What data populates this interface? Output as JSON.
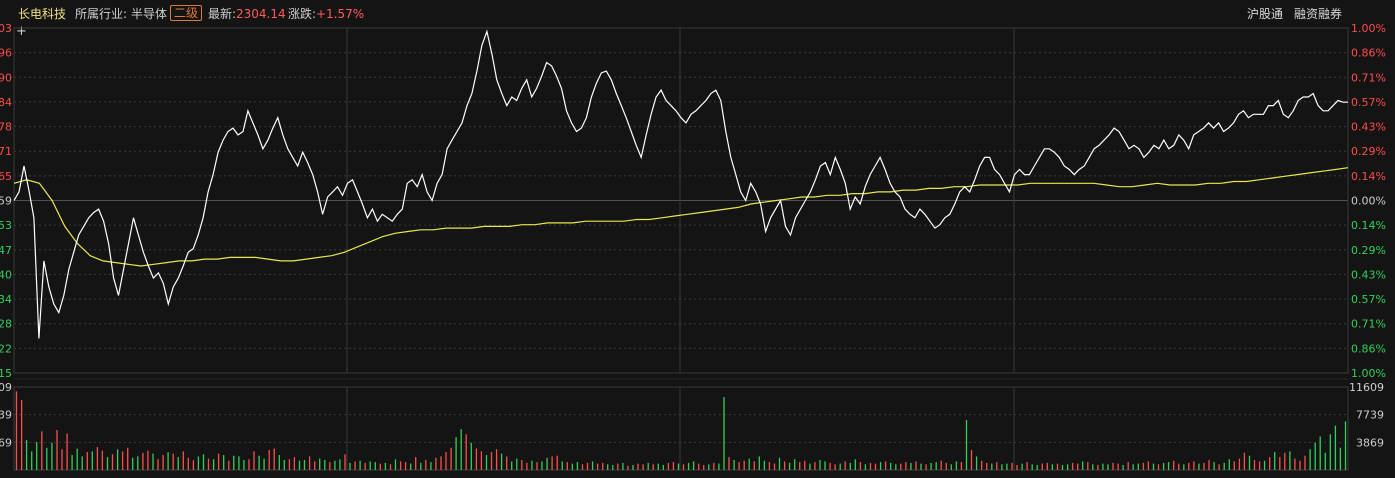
{
  "header": {
    "stock_name": "长电科技",
    "industry_label": "所属行业:",
    "industry_value": "半导体",
    "level_badge": "二级",
    "latest_label": "最新:",
    "latest_value": "2304.14",
    "change_label": "涨跌:",
    "change_value": "+1.57%",
    "links": [
      "沪股通",
      "融资融券"
    ]
  },
  "colors": {
    "background": "#141414",
    "price_line": "#ffffff",
    "avg_line": "#e8e84a",
    "up": "#ff4d4d",
    "down": "#2fd15a",
    "grid": "#3a3a3a"
  },
  "chart_data": [
    {
      "type": "line",
      "series": [
        {
          "values": [
            0.0,
            0.05,
            0.2,
            0.06,
            -0.1,
            -0.8,
            -0.35,
            -0.5,
            -0.6,
            -0.65,
            -0.55,
            -0.4,
            -0.3,
            -0.2,
            -0.15,
            -0.1,
            -0.07,
            -0.05,
            -0.12,
            -0.25,
            -0.45,
            -0.55,
            -0.4,
            -0.25,
            -0.1,
            -0.2,
            -0.3,
            -0.38,
            -0.45,
            -0.42,
            -0.48,
            -0.6,
            -0.5,
            -0.45,
            -0.38,
            -0.3,
            -0.28,
            -0.2,
            -0.1,
            0.05,
            0.15,
            0.28,
            0.35,
            0.4,
            0.42,
            0.38,
            0.4,
            0.52,
            0.45,
            0.38,
            0.3,
            0.35,
            0.42,
            0.48,
            0.38,
            0.3,
            0.25,
            0.2,
            0.28,
            0.22,
            0.15,
            0.05,
            -0.08,
            0.02,
            0.05,
            0.08,
            0.03,
            0.1,
            0.12,
            0.05,
            -0.02,
            -0.1,
            -0.05,
            -0.12,
            -0.08,
            -0.1,
            -0.12,
            -0.08,
            -0.05,
            0.1,
            0.12,
            0.08,
            0.15,
            0.05,
            0.0,
            0.1,
            0.15,
            0.3,
            0.35,
            0.4,
            0.45,
            0.55,
            0.62,
            0.75,
            0.9,
            0.98,
            0.85,
            0.7,
            0.62,
            0.55,
            0.6,
            0.58,
            0.65,
            0.7,
            0.6,
            0.65,
            0.72,
            0.8,
            0.78,
            0.72,
            0.65,
            0.52,
            0.45,
            0.4,
            0.42,
            0.48,
            0.6,
            0.68,
            0.74,
            0.75,
            0.7,
            0.62,
            0.55,
            0.48,
            0.4,
            0.32,
            0.25,
            0.38,
            0.5,
            0.6,
            0.64,
            0.58,
            0.55,
            0.52,
            0.48,
            0.45,
            0.5,
            0.52,
            0.55,
            0.58,
            0.62,
            0.64,
            0.58,
            0.4,
            0.25,
            0.15,
            0.05,
            0.0,
            0.1,
            0.05,
            -0.02,
            -0.18,
            -0.1,
            -0.05,
            0.0,
            -0.15,
            -0.2,
            -0.1,
            -0.05,
            0.0,
            0.05,
            0.12,
            0.2,
            0.22,
            0.15,
            0.25,
            0.18,
            0.1,
            -0.05,
            0.02,
            -0.02,
            0.08,
            0.15,
            0.2,
            0.25,
            0.18,
            0.1,
            0.05,
            0.02,
            -0.05,
            -0.08,
            -0.1,
            -0.05,
            -0.08,
            -0.12,
            -0.16,
            -0.14,
            -0.1,
            -0.08,
            -0.02,
            0.05,
            0.08,
            0.05,
            0.12,
            0.2,
            0.25,
            0.25,
            0.18,
            0.15,
            0.1,
            0.05,
            0.15,
            0.18,
            0.15,
            0.15,
            0.2,
            0.25,
            0.3,
            0.3,
            0.28,
            0.25,
            0.2,
            0.18,
            0.15,
            0.18,
            0.2,
            0.25,
            0.3,
            0.32,
            0.35,
            0.38,
            0.42,
            0.4,
            0.35,
            0.3,
            0.32,
            0.3,
            0.25,
            0.28,
            0.32,
            0.3,
            0.35,
            0.3,
            0.32,
            0.38,
            0.35,
            0.3,
            0.38,
            0.4,
            0.42,
            0.45,
            0.42,
            0.45,
            0.4,
            0.42,
            0.45,
            0.5,
            0.52,
            0.48,
            0.5,
            0.5,
            0.5,
            0.55,
            0.55,
            0.58,
            0.5,
            0.48,
            0.52,
            0.58,
            0.6,
            0.6,
            0.62,
            0.55,
            0.52,
            0.52,
            0.55,
            0.58,
            0.57,
            0.57
          ]
        },
        {
          "values": [
            0.1,
            0.12,
            0.1,
            0.0,
            -0.15,
            -0.25,
            -0.32,
            -0.35,
            -0.36,
            -0.37,
            -0.38,
            -0.37,
            -0.36,
            -0.35,
            -0.35,
            -0.34,
            -0.34,
            -0.33,
            -0.33,
            -0.33,
            -0.34,
            -0.35,
            -0.35,
            -0.34,
            -0.33,
            -0.32,
            -0.3,
            -0.27,
            -0.24,
            -0.21,
            -0.19,
            -0.18,
            -0.17,
            -0.17,
            -0.16,
            -0.16,
            -0.16,
            -0.15,
            -0.15,
            -0.15,
            -0.14,
            -0.14,
            -0.13,
            -0.13,
            -0.13,
            -0.12,
            -0.12,
            -0.12,
            -0.12,
            -0.11,
            -0.11,
            -0.1,
            -0.09,
            -0.08,
            -0.07,
            -0.06,
            -0.05,
            -0.04,
            -0.02,
            -0.01,
            0.0,
            0.01,
            0.02,
            0.02,
            0.03,
            0.03,
            0.04,
            0.04,
            0.05,
            0.05,
            0.06,
            0.06,
            0.07,
            0.07,
            0.08,
            0.08,
            0.09,
            0.09,
            0.09,
            0.09,
            0.1,
            0.1,
            0.1,
            0.1,
            0.1,
            0.1,
            0.09,
            0.08,
            0.08,
            0.09,
            0.1,
            0.09,
            0.09,
            0.09,
            0.1,
            0.1,
            0.11,
            0.11,
            0.12,
            0.13,
            0.14,
            0.15,
            0.16,
            0.17,
            0.18,
            0.19
          ]
        }
      ],
      "ylabel_left": [
        "03",
        "96",
        "90",
        "84",
        "78",
        "71",
        "65",
        "59",
        "53",
        "47",
        "40",
        "34",
        "28",
        "22",
        "15"
      ],
      "ylabel_right": [
        "1.00%",
        "0.86%",
        "0.71%",
        "0.57%",
        "0.43%",
        "0.29%",
        "0.14%",
        "0.00%",
        "0.14%",
        "0.29%",
        "0.43%",
        "0.57%",
        "0.71%",
        "0.86%",
        "1.00%"
      ],
      "ylim": [
        -1.0,
        1.0
      ]
    },
    {
      "type": "bar",
      "ylabel_left": [
        "09",
        "39",
        "69"
      ],
      "ylabel_right": [
        "11609",
        "7739",
        "3869"
      ],
      "ylim": [
        0,
        11609
      ],
      "values": [
        11000,
        9800,
        4200,
        2600,
        3900,
        5400,
        3100,
        3800,
        5600,
        2900,
        5100,
        2100,
        3000,
        1900,
        2500,
        2600,
        3200,
        2700,
        1800,
        2200,
        2900,
        2600,
        3100,
        1700,
        1900,
        2400,
        2700,
        2300,
        1500,
        2100,
        2500,
        2300,
        1800,
        2600,
        1700,
        1400,
        1900,
        2200,
        1600,
        1500,
        2300,
        2100,
        1300,
        2000,
        1900,
        1400,
        1500,
        2600,
        2000,
        1600,
        2800,
        3000,
        2100,
        1400,
        1500,
        1800,
        1300,
        1400,
        1900,
        1200,
        1600,
        1400,
        1100,
        1300,
        1500,
        2200,
        1000,
        1200,
        1300,
        1000,
        1200,
        1100,
        900,
        1000,
        800,
        1500,
        1200,
        1100,
        900,
        1800,
        1000,
        1400,
        1100,
        1700,
        1900,
        2500,
        3100,
        4600,
        5700,
        5000,
        3800,
        3000,
        2600,
        2100,
        2500,
        2900,
        2300,
        1900,
        1200,
        1600,
        1400,
        1000,
        1300,
        1100,
        1200,
        1700,
        1900,
        2000,
        1200,
        1100,
        900,
        1100,
        800,
        1000,
        1200,
        900,
        1000,
        800,
        700,
        900,
        1000,
        600,
        700,
        900,
        800,
        1000,
        800,
        900,
        700,
        1000,
        1100,
        900,
        800,
        1000,
        1200,
        900,
        700,
        800,
        1000,
        900,
        10200,
        1800,
        1400,
        1100,
        1300,
        1600,
        1200,
        1900,
        1300,
        1100,
        900,
        1700,
        1200,
        1000,
        1500,
        1100,
        1300,
        900,
        1100,
        1400,
        1200,
        1000,
        800,
        900,
        1200,
        1000,
        1500,
        1100,
        800,
        1000,
        900,
        1100,
        1200,
        1000,
        800,
        900,
        1100,
        1000,
        1200,
        900,
        800,
        1000,
        1100,
        1300,
        1000,
        800,
        1200,
        1100,
        7000,
        2800,
        1900,
        1300,
        1000,
        900,
        1100,
        800,
        900,
        1000,
        700,
        900,
        1100,
        800,
        700,
        900,
        1000,
        800,
        900,
        700,
        800,
        1000,
        900,
        1200,
        1100,
        800,
        700,
        900,
        800,
        1000,
        900,
        700,
        1100,
        800,
        900,
        1000,
        1200,
        900,
        800,
        1000,
        1100,
        1300,
        900,
        800,
        1000,
        1200,
        900,
        1000,
        1400,
        1100,
        800,
        1000,
        1500,
        1200,
        1600,
        2400,
        2000,
        1400,
        1200,
        1300,
        1800,
        2500,
        1800,
        2400,
        2600,
        1600,
        1300,
        2000,
        2900,
        3800,
        4700,
        2400,
        5000,
        6200,
        3100,
        6800
      ],
      "up": [
        true,
        true,
        false,
        false,
        false,
        true,
        false,
        false,
        true,
        true,
        true,
        false,
        false,
        false,
        true,
        false,
        true,
        true,
        false,
        true,
        false,
        true,
        true,
        false,
        false,
        true,
        true,
        false,
        true,
        true,
        false,
        true,
        false,
        true,
        true,
        true,
        false,
        false,
        true,
        false,
        true,
        false,
        true,
        false,
        false,
        false,
        true,
        true,
        false,
        false,
        true,
        true,
        false,
        false,
        true,
        true,
        false,
        false,
        true,
        true,
        false,
        false,
        true,
        false,
        false,
        true,
        false,
        true,
        false,
        true,
        false,
        false,
        true,
        false,
        true,
        false,
        true,
        true,
        false,
        true,
        false,
        true,
        false,
        true,
        true,
        true,
        true,
        false,
        false,
        true,
        false,
        true,
        true,
        false,
        true,
        true,
        false,
        true,
        false,
        false,
        true,
        true,
        false,
        true,
        false,
        false,
        true,
        true,
        false,
        true,
        false,
        false,
        true,
        true,
        false,
        true,
        true,
        false,
        false,
        true,
        false,
        true,
        false,
        true,
        true,
        false,
        true,
        false,
        false,
        true,
        true,
        false,
        true,
        false,
        false,
        true,
        true,
        false,
        true,
        false,
        false,
        true,
        false,
        true,
        true,
        false,
        true,
        false,
        false,
        true,
        true,
        false,
        true,
        false,
        false,
        true,
        true,
        false,
        true,
        false,
        false,
        true,
        true,
        false,
        true,
        false,
        false,
        true,
        false,
        true,
        true,
        false,
        true,
        false,
        false,
        true,
        true,
        false,
        true,
        false,
        true,
        false,
        false,
        true,
        true,
        false,
        false,
        true,
        false,
        true,
        false,
        true,
        true,
        false,
        true,
        false,
        false,
        true,
        true,
        false,
        true,
        false,
        false,
        true,
        true,
        false,
        true,
        false,
        false,
        true,
        true,
        false,
        true,
        false,
        true,
        false,
        false,
        true,
        true,
        false,
        true,
        false,
        false,
        true,
        true,
        false,
        true,
        false,
        false,
        true,
        true,
        false,
        true,
        true,
        false,
        true,
        true,
        false,
        true,
        false,
        false,
        true,
        true,
        true,
        false,
        true,
        true,
        false,
        true,
        false,
        true,
        true,
        false,
        true,
        true,
        true
      ]
    }
  ]
}
